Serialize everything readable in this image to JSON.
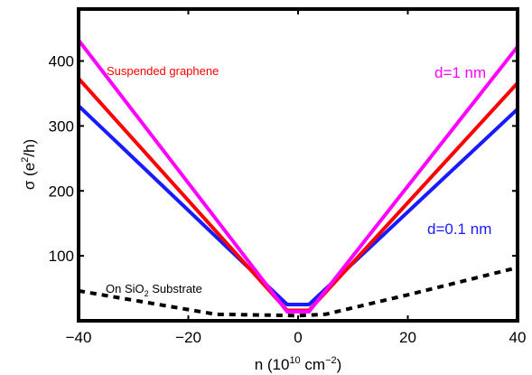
{
  "chart_data": {
    "type": "line",
    "title": "",
    "xlabel": {
      "main": "n (10",
      "sup1": "10",
      "mid": " cm",
      "sup2": "−2",
      "end": ")"
    },
    "ylabel": {
      "main": "σ (e",
      "sup": "2",
      "end": "/h)"
    },
    "xlim": [
      -40,
      40
    ],
    "ylim": [
      0,
      480
    ],
    "xticks": [
      -40,
      -20,
      0,
      20,
      40
    ],
    "xtick_labels": [
      "−40",
      "−20",
      "0",
      "20",
      "40"
    ],
    "yticks": [
      100,
      200,
      300,
      400
    ],
    "ytick_labels": [
      "100",
      "200",
      "300",
      "400"
    ],
    "grid": false,
    "series": [
      {
        "key": "sio2",
        "color": "#000000",
        "dash": "7,6",
        "x": [
          -40,
          -15,
          0,
          5,
          10,
          20,
          40
        ],
        "y": [
          46,
          10,
          8,
          10,
          20,
          40,
          82
        ]
      },
      {
        "key": "d01",
        "color": "#1a1aff",
        "dash": "",
        "x": [
          -40,
          -2,
          2,
          40
        ],
        "y": [
          331,
          25,
          25,
          326
        ]
      },
      {
        "key": "susp",
        "color": "#ff0000",
        "dash": "",
        "x": [
          -40,
          -2,
          2,
          40
        ],
        "y": [
          373,
          16,
          16,
          366
        ]
      },
      {
        "key": "d1",
        "color": "#ff00ff",
        "dash": "",
        "x": [
          -40,
          -2,
          2,
          40
        ],
        "y": [
          432,
          14,
          14,
          422
        ]
      }
    ],
    "annotations": {
      "suspended": {
        "text": "Suspended graphene",
        "color": "#ff0000"
      },
      "d1": {
        "text": "d=1 nm",
        "color": "#ff00ff"
      },
      "d01": {
        "text": "d=0.1 nm",
        "color": "#1a1aff"
      },
      "sio2": {
        "text_a": "On SiO",
        "sub": "2",
        "text_b": " Substrate",
        "color": "#000000"
      }
    }
  }
}
